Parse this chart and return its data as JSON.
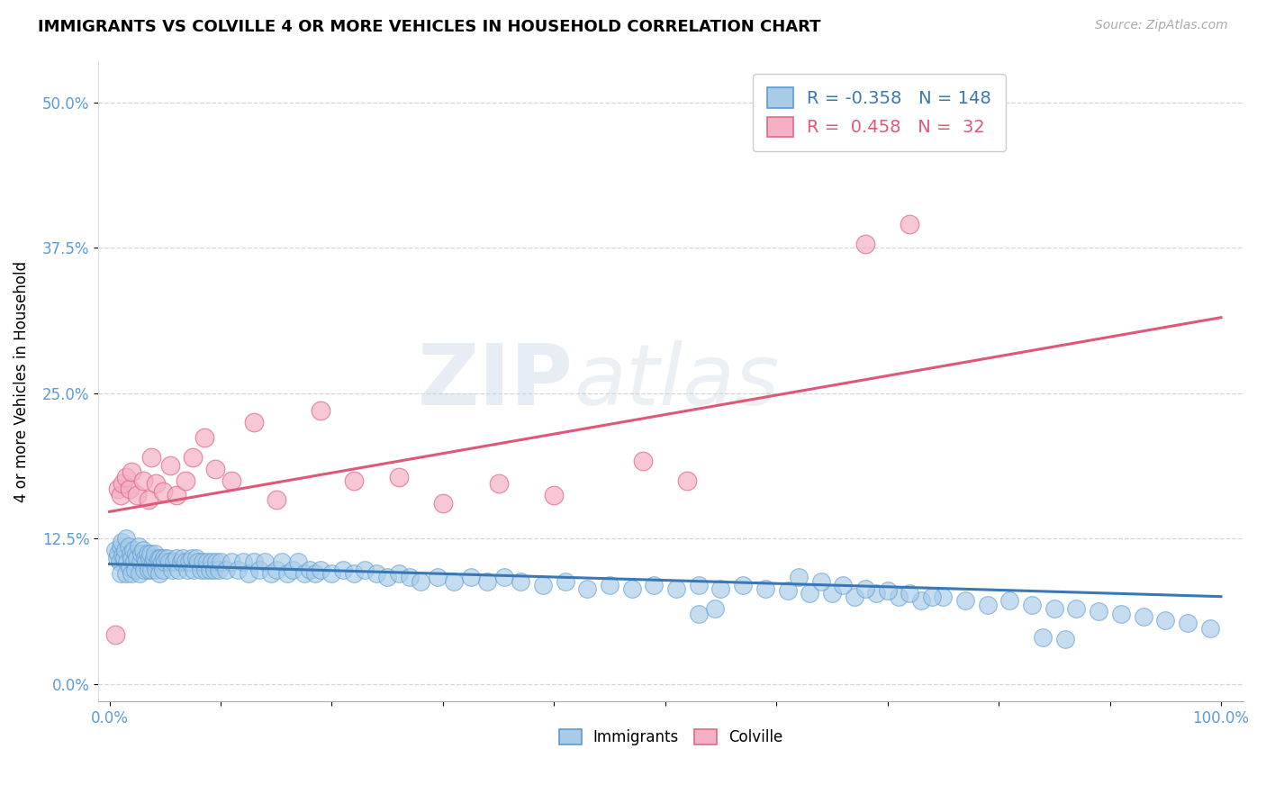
{
  "title": "IMMIGRANTS VS COLVILLE 4 OR MORE VEHICLES IN HOUSEHOLD CORRELATION CHART",
  "source_text": "Source: ZipAtlas.com",
  "ylabel": "4 or more Vehicles in Household",
  "xlim": [
    -0.01,
    1.02
  ],
  "ylim": [
    -0.015,
    0.535
  ],
  "yticks": [
    0.0,
    0.125,
    0.25,
    0.375,
    0.5
  ],
  "ytick_labels": [
    "0.0%",
    "12.5%",
    "25.0%",
    "37.5%",
    "50.0%"
  ],
  "xticks": [
    0.0,
    0.1,
    0.2,
    0.3,
    0.4,
    0.5,
    0.6,
    0.7,
    0.8,
    0.9,
    1.0
  ],
  "xtick_labels": [
    "0.0%",
    "",
    "",
    "",
    "",
    "",
    "",
    "",
    "",
    "",
    "100.0%"
  ],
  "blue_R": -0.358,
  "blue_N": 148,
  "pink_R": 0.458,
  "pink_N": 32,
  "blue_color": "#a8cce8",
  "pink_color": "#f4b0c4",
  "blue_edge_color": "#5b9bd5",
  "pink_edge_color": "#e06888",
  "blue_line_color": "#3a78b5",
  "pink_line_color": "#e05878",
  "watermark_zip": "ZIP",
  "watermark_atlas": "atlas",
  "legend_blue_label": "Immigrants",
  "legend_pink_label": "Colville",
  "blue_trend_y_start": 0.103,
  "blue_trend_y_end": 0.075,
  "pink_trend_y_start": 0.148,
  "pink_trend_y_end": 0.315,
  "blue_scatter_x": [
    0.005,
    0.007,
    0.008,
    0.009,
    0.01,
    0.01,
    0.011,
    0.012,
    0.013,
    0.014,
    0.015,
    0.015,
    0.016,
    0.017,
    0.018,
    0.019,
    0.02,
    0.02,
    0.021,
    0.022,
    0.023,
    0.024,
    0.025,
    0.026,
    0.027,
    0.028,
    0.029,
    0.03,
    0.031,
    0.032,
    0.033,
    0.034,
    0.035,
    0.036,
    0.037,
    0.038,
    0.039,
    0.04,
    0.041,
    0.042,
    0.043,
    0.044,
    0.045,
    0.046,
    0.047,
    0.048,
    0.049,
    0.05,
    0.052,
    0.054,
    0.056,
    0.058,
    0.06,
    0.062,
    0.064,
    0.066,
    0.068,
    0.07,
    0.072,
    0.074,
    0.076,
    0.078,
    0.08,
    0.082,
    0.084,
    0.086,
    0.088,
    0.09,
    0.092,
    0.094,
    0.096,
    0.098,
    0.1,
    0.105,
    0.11,
    0.115,
    0.12,
    0.125,
    0.13,
    0.135,
    0.14,
    0.145,
    0.15,
    0.155,
    0.16,
    0.165,
    0.17,
    0.175,
    0.18,
    0.185,
    0.19,
    0.2,
    0.21,
    0.22,
    0.23,
    0.24,
    0.25,
    0.26,
    0.27,
    0.28,
    0.295,
    0.31,
    0.325,
    0.34,
    0.355,
    0.37,
    0.39,
    0.41,
    0.43,
    0.45,
    0.47,
    0.49,
    0.51,
    0.53,
    0.55,
    0.57,
    0.59,
    0.61,
    0.63,
    0.65,
    0.67,
    0.69,
    0.71,
    0.73,
    0.75,
    0.77,
    0.79,
    0.81,
    0.83,
    0.85,
    0.87,
    0.89,
    0.91,
    0.93,
    0.95,
    0.97,
    0.99,
    0.53,
    0.545,
    0.62,
    0.64,
    0.66,
    0.68,
    0.7,
    0.72,
    0.74,
    0.84,
    0.86
  ],
  "blue_scatter_y": [
    0.115,
    0.108,
    0.112,
    0.105,
    0.118,
    0.095,
    0.122,
    0.11,
    0.108,
    0.115,
    0.125,
    0.095,
    0.105,
    0.118,
    0.1,
    0.112,
    0.108,
    0.095,
    0.115,
    0.105,
    0.098,
    0.112,
    0.108,
    0.118,
    0.095,
    0.105,
    0.112,
    0.115,
    0.098,
    0.108,
    0.105,
    0.112,
    0.098,
    0.108,
    0.112,
    0.098,
    0.105,
    0.108,
    0.112,
    0.098,
    0.105,
    0.108,
    0.095,
    0.108,
    0.105,
    0.098,
    0.108,
    0.105,
    0.108,
    0.105,
    0.098,
    0.105,
    0.108,
    0.098,
    0.105,
    0.108,
    0.105,
    0.098,
    0.105,
    0.108,
    0.098,
    0.108,
    0.105,
    0.098,
    0.105,
    0.098,
    0.105,
    0.098,
    0.105,
    0.098,
    0.105,
    0.098,
    0.105,
    0.098,
    0.105,
    0.098,
    0.105,
    0.095,
    0.105,
    0.098,
    0.105,
    0.095,
    0.098,
    0.105,
    0.095,
    0.098,
    0.105,
    0.095,
    0.098,
    0.095,
    0.098,
    0.095,
    0.098,
    0.095,
    0.098,
    0.095,
    0.092,
    0.095,
    0.092,
    0.088,
    0.092,
    0.088,
    0.092,
    0.088,
    0.092,
    0.088,
    0.085,
    0.088,
    0.082,
    0.085,
    0.082,
    0.085,
    0.082,
    0.085,
    0.082,
    0.085,
    0.082,
    0.08,
    0.078,
    0.078,
    0.075,
    0.078,
    0.075,
    0.072,
    0.075,
    0.072,
    0.068,
    0.072,
    0.068,
    0.065,
    0.065,
    0.062,
    0.06,
    0.058,
    0.055,
    0.052,
    0.048,
    0.06,
    0.065,
    0.092,
    0.088,
    0.085,
    0.082,
    0.08,
    0.078,
    0.075,
    0.04,
    0.038
  ],
  "pink_scatter_x": [
    0.005,
    0.008,
    0.01,
    0.012,
    0.015,
    0.018,
    0.02,
    0.025,
    0.03,
    0.035,
    0.038,
    0.042,
    0.048,
    0.055,
    0.06,
    0.068,
    0.075,
    0.085,
    0.095,
    0.11,
    0.13,
    0.15,
    0.19,
    0.22,
    0.26,
    0.3,
    0.35,
    0.4,
    0.48,
    0.52,
    0.68,
    0.72
  ],
  "pink_scatter_y": [
    0.042,
    0.168,
    0.162,
    0.172,
    0.178,
    0.168,
    0.182,
    0.162,
    0.175,
    0.158,
    0.195,
    0.172,
    0.165,
    0.188,
    0.162,
    0.175,
    0.195,
    0.212,
    0.185,
    0.175,
    0.225,
    0.158,
    0.235,
    0.175,
    0.178,
    0.155,
    0.172,
    0.162,
    0.192,
    0.175,
    0.378,
    0.395
  ]
}
